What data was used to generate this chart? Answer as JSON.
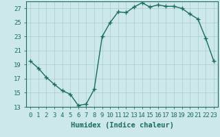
{
  "x": [
    0,
    1,
    2,
    3,
    4,
    5,
    6,
    7,
    8,
    9,
    10,
    11,
    12,
    13,
    14,
    15,
    16,
    17,
    18,
    19,
    20,
    21,
    22,
    23
  ],
  "y": [
    19.5,
    18.5,
    17.2,
    16.2,
    15.3,
    14.8,
    13.2,
    13.4,
    15.5,
    23.0,
    25.0,
    26.5,
    26.4,
    27.2,
    27.8,
    27.2,
    27.5,
    27.3,
    27.3,
    27.0,
    26.2,
    25.5,
    22.7,
    19.5
  ],
  "line_color": "#1a6b5a",
  "marker": "+",
  "marker_size": 4,
  "bg_color": "#cce8e8",
  "grid_color": "#aacccc",
  "xlabel": "Humidex (Indice chaleur)",
  "ylim": [
    13,
    28
  ],
  "xlim": [
    -0.5,
    23.5
  ],
  "yticks": [
    13,
    15,
    17,
    19,
    21,
    23,
    25,
    27
  ],
  "xticks": [
    0,
    1,
    2,
    3,
    4,
    5,
    6,
    7,
    8,
    9,
    10,
    11,
    12,
    13,
    14,
    15,
    16,
    17,
    18,
    19,
    20,
    21,
    22,
    23
  ],
  "xlabel_fontsize": 7.5,
  "tick_fontsize": 6.5,
  "line_width": 1.0
}
